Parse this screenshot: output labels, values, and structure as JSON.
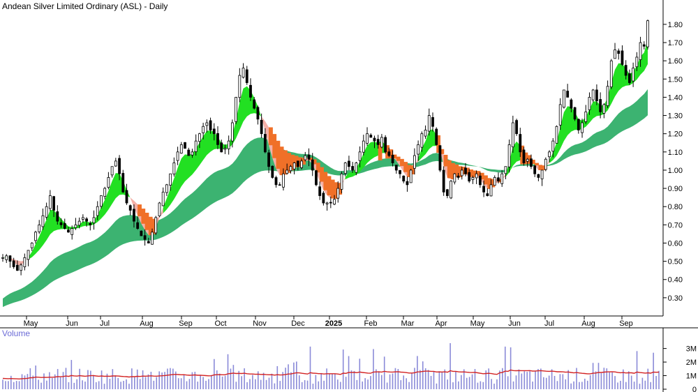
{
  "header": {
    "title": "Andean Silver Limited Ordinary (ASL) - Daily",
    "volume_label": "Volume"
  },
  "colors": {
    "long_band": "#3cb371",
    "short_band_up": "#22e022",
    "short_band_down": "#f4b0a8",
    "crossover_zone": "#f07028",
    "candle": "#000000",
    "volume_bar": "#8a8ad8",
    "volume_ma": "#d22222",
    "axis": "#000000"
  },
  "chart_data": [
    {
      "type": "candlestick",
      "title": "Andean Silver Limited Ordinary (ASL) - Daily",
      "xlabel": "",
      "ylabel": "",
      "x_ticks": [
        "May",
        "Jun",
        "Jul",
        "Aug",
        "Sep",
        "Oct",
        "Nov",
        "Dec",
        "2025",
        "Feb",
        "Mar",
        "Apr",
        "May",
        "Jun",
        "Jul",
        "Aug",
        "Sep"
      ],
      "y_ticks": [
        0.3,
        0.4,
        0.5,
        0.6,
        0.7,
        0.8,
        0.9,
        1.0,
        1.1,
        1.2,
        1.3,
        1.4,
        1.5,
        1.6,
        1.7,
        1.8
      ],
      "ylim": [
        0.2,
        1.88
      ],
      "grid": false,
      "close_series": [
        0.52,
        0.53,
        0.5,
        0.47,
        0.45,
        0.48,
        0.52,
        0.56,
        0.6,
        0.66,
        0.7,
        0.75,
        0.8,
        0.86,
        0.78,
        0.72,
        0.7,
        0.68,
        0.66,
        0.68,
        0.7,
        0.72,
        0.74,
        0.72,
        0.7,
        0.74,
        0.8,
        0.86,
        0.9,
        0.96,
        1.02,
        1.05,
        0.98,
        0.88,
        0.82,
        0.78,
        0.72,
        0.68,
        0.64,
        0.62,
        0.6,
        0.66,
        0.74,
        0.82,
        0.88,
        0.92,
        0.98,
        1.04,
        1.1,
        1.14,
        1.12,
        1.08,
        1.1,
        1.16,
        1.2,
        1.24,
        1.26,
        1.22,
        1.2,
        1.14,
        1.1,
        1.12,
        1.16,
        1.26,
        1.4,
        1.52,
        1.56,
        1.48,
        1.4,
        1.34,
        1.28,
        1.2,
        1.1,
        1.02,
        0.96,
        0.92,
        0.92,
        0.98,
        1.0,
        1.02,
        1.04,
        1.02,
        1.05,
        1.08,
        1.06,
        1.0,
        0.92,
        0.86,
        0.82,
        0.82,
        0.82,
        0.84,
        0.9,
        0.98,
        1.04,
        1.02,
        1.0,
        1.04,
        1.1,
        1.16,
        1.2,
        1.18,
        1.16,
        1.14,
        1.18,
        1.1,
        1.08,
        1.04,
        1.0,
        0.98,
        0.94,
        0.92,
        1.0,
        1.08,
        1.14,
        1.2,
        1.22,
        1.3,
        1.24,
        1.14,
        1.0,
        0.88,
        0.86,
        0.94,
        0.98,
        0.96,
        1.0,
        0.98,
        0.94,
        0.96,
        0.98,
        0.92,
        0.88,
        0.86,
        0.92,
        0.96,
        0.94,
        0.98,
        1.02,
        1.14,
        1.26,
        1.2,
        1.1,
        1.04,
        1.06,
        1.02,
        0.98,
        0.96,
        1.0,
        1.06,
        1.1,
        1.16,
        1.24,
        1.36,
        1.44,
        1.4,
        1.34,
        1.28,
        1.22,
        1.26,
        1.32,
        1.4,
        1.44,
        1.38,
        1.32,
        1.36,
        1.46,
        1.6,
        1.66,
        1.64,
        1.58,
        1.52,
        1.48,
        1.56,
        1.62,
        1.7,
        1.68,
        1.82
      ],
      "series": [
        {
          "name": "",
          "values": []
        }
      ]
    },
    {
      "type": "bar",
      "title": "Volume",
      "y_ticks": [
        "0",
        "1M",
        "2M",
        "3M"
      ],
      "ylim": [
        0,
        3.7
      ],
      "value_unit": "millions",
      "average_level": 1.2
    }
  ],
  "axis": {
    "x_labels": [
      "May",
      "Jun",
      "Jul",
      "Aug",
      "Sep",
      "Oct",
      "Nov",
      "Dec",
      "2025",
      "Feb",
      "Mar",
      "Apr",
      "May",
      "Jun",
      "Jul",
      "Aug",
      "Sep"
    ],
    "price_labels": [
      "0.30",
      "0.40",
      "0.50",
      "0.60",
      "0.70",
      "0.80",
      "0.90",
      "1.00",
      "1.10",
      "1.20",
      "1.30",
      "1.40",
      "1.50",
      "1.60",
      "1.70",
      "1.80"
    ],
    "volume_labels": [
      "0",
      "1M",
      "2M",
      "3M"
    ]
  }
}
